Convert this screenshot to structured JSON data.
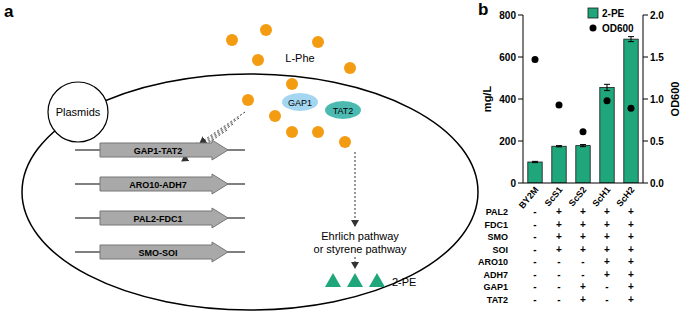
{
  "panels": [
    "a",
    "b"
  ],
  "diagram": {
    "substrate": "L-Phe",
    "transporters": [
      "GAP1",
      "TAT2"
    ],
    "plasmid_label": "Plasmids",
    "genes": [
      "GAP1-TAT2",
      "ARO10-ADH7",
      "PAL2-FDC1",
      "SMO-SOI"
    ],
    "pathway": [
      "Ehrlich pathway",
      "or styrene pathway"
    ],
    "product": "2-PE"
  },
  "chart_data": {
    "type": "bar",
    "categories": [
      "BY2M",
      "ScS1",
      "ScS2",
      "ScH1",
      "ScH2"
    ],
    "series": [
      {
        "name": "2-PE",
        "type": "bar",
        "color": "#1fa67a",
        "values": [
          100,
          175,
          178,
          455,
          685
        ],
        "errors": [
          3,
          3,
          5,
          15,
          12
        ]
      },
      {
        "name": "OD600",
        "type": "scatter",
        "color": "#000000",
        "marker": "circle",
        "axis": "y2",
        "values": [
          1.47,
          0.93,
          0.61,
          0.98,
          0.89
        ]
      }
    ],
    "y_label": "mg/L",
    "y2_label": "OD600",
    "ylim": [
      0,
      800
    ],
    "yticks": [
      0,
      200,
      400,
      600,
      800
    ],
    "y2lim": [
      0,
      2
    ],
    "y2ticks": [
      {
        "value": 0,
        "label": "0.0"
      },
      {
        "value": 0.5,
        "label": "0.5"
      },
      {
        "value": 1,
        "label": "1.0"
      },
      {
        "value": 1.5,
        "label": "1.5"
      },
      {
        "value": 2,
        "label": "2.0"
      }
    ],
    "legend": "top-right",
    "genotype_table": [
      {
        "label": "PAL2",
        "values": [
          "-",
          "+",
          "+",
          "+",
          "+"
        ]
      },
      {
        "label": "FDC1",
        "values": [
          "-",
          "+",
          "+",
          "+",
          "+"
        ]
      },
      {
        "label": "SMO",
        "values": [
          "-",
          "+",
          "+",
          "+",
          "+"
        ]
      },
      {
        "label": "SOI",
        "values": [
          "-",
          "+",
          "+",
          "+",
          "+"
        ]
      },
      {
        "label": "ARO10",
        "values": [
          "-",
          "-",
          "-",
          "+",
          "+"
        ]
      },
      {
        "label": "ADH7",
        "values": [
          "-",
          "-",
          "-",
          "+",
          "+"
        ]
      },
      {
        "label": "GAP1",
        "values": [
          "-",
          "-",
          "+",
          "-",
          "+"
        ]
      },
      {
        "label": "TAT2",
        "values": [
          "-",
          "-",
          "+",
          "-",
          "+"
        ]
      }
    ]
  }
}
